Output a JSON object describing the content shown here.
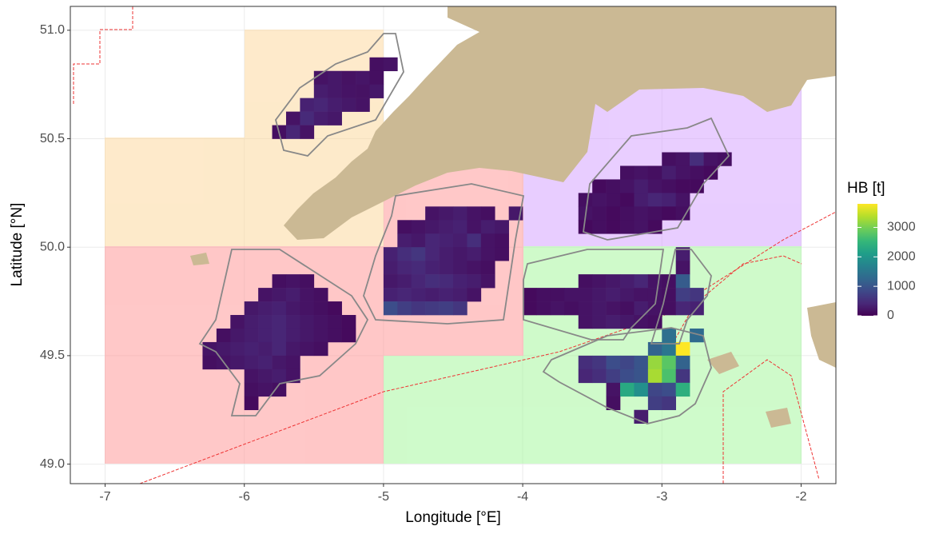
{
  "chart_data": {
    "type": "heatmap",
    "x_label": "Longitude  [°E]",
    "y_label": "Latitude  [°N]",
    "xlim": [
      -7.25,
      -1.75
    ],
    "ylim": [
      48.91,
      51.11
    ],
    "xticks": [
      -7,
      -6,
      -5,
      -4,
      -3,
      -2
    ],
    "yticks": [
      {
        "value": 49,
        "label": "49.0"
      },
      {
        "value": 49.5,
        "label": "49.5"
      },
      {
        "value": 50,
        "label": "50.0"
      },
      {
        "value": 50.5,
        "label": "50.5"
      },
      {
        "value": 51,
        "label": "51.0"
      }
    ],
    "grid": true,
    "rows": [
      {
        "lat": 50.8125,
        "lon": -5.1,
        "values": [
          150,
          200
        ]
      },
      {
        "lat": 50.75,
        "lon": -5.5,
        "values": [
          200,
          250,
          180,
          220,
          150
        ]
      },
      {
        "lat": 50.6875,
        "lon": -5.5,
        "values": [
          300,
          250,
          200,
          180,
          250
        ]
      },
      {
        "lat": 50.625,
        "lon": -5.6,
        "values": [
          350,
          400,
          300,
          250,
          200
        ]
      },
      {
        "lat": 50.5625,
        "lon": -5.7,
        "values": [
          200,
          450,
          300,
          250
        ]
      },
      {
        "lat": 50.5,
        "lon": -5.8,
        "values": [
          150,
          400,
          200
        ]
      },
      {
        "lat": 50.375,
        "lon": -3.0,
        "values": [
          150,
          200,
          500,
          200,
          150
        ]
      },
      {
        "lat": 50.3125,
        "lon": -3.3,
        "values": [
          150,
          200,
          150,
          300,
          200,
          150,
          100
        ]
      },
      {
        "lat": 50.25,
        "lon": -3.5,
        "values": [
          100,
          150,
          200,
          300,
          200,
          150,
          100,
          100
        ]
      },
      {
        "lat": 50.1875,
        "lon": -3.6,
        "values": [
          150,
          200,
          150,
          100,
          300,
          400,
          350,
          200
        ]
      },
      {
        "lat": 50.125,
        "lon": -3.6,
        "values": [
          200,
          150,
          100,
          150,
          200,
          150,
          100,
          150
        ]
      },
      {
        "lat": 50.0625,
        "lon": -3.6,
        "values": [
          100,
          150,
          100,
          150,
          200,
          100
        ]
      },
      {
        "lat": 50.125,
        "lon": -4.7,
        "values": [
          200,
          250,
          300,
          200,
          150,
          null,
          250
        ]
      },
      {
        "lat": 50.0625,
        "lon": -4.9,
        "values": [
          150,
          200,
          250,
          300,
          350,
          200,
          300,
          250
        ]
      },
      {
        "lat": 50.0,
        "lon": -4.9,
        "values": [
          300,
          250,
          400,
          350,
          300,
          500,
          200,
          150
        ]
      },
      {
        "lat": 49.9375,
        "lon": -5.0,
        "values": [
          350,
          500,
          600,
          400,
          300,
          250,
          300,
          200,
          150
        ]
      },
      {
        "lat": 49.875,
        "lon": -5.0,
        "values": [
          300,
          400,
          450,
          350,
          300,
          250,
          200,
          150
        ]
      },
      {
        "lat": 49.8125,
        "lon": -5.0,
        "values": [
          250,
          300,
          400,
          500,
          450,
          350,
          300,
          200
        ]
      },
      {
        "lat": 49.75,
        "lon": -5.0,
        "values": [
          350,
          400,
          350,
          300,
          350,
          300,
          200
        ]
      },
      {
        "lat": 49.6875,
        "lon": -5.0,
        "values": [
          900,
          700,
          600,
          650,
          700,
          600
        ]
      },
      {
        "lat": 49.8125,
        "lon": -5.8,
        "values": [
          150,
          200,
          150
        ]
      },
      {
        "lat": 49.75,
        "lon": -5.9,
        "values": [
          200,
          250,
          300,
          200,
          150
        ]
      },
      {
        "lat": 49.6875,
        "lon": -6.0,
        "values": [
          250,
          300,
          350,
          250,
          200,
          150,
          100
        ]
      },
      {
        "lat": 49.625,
        "lon": -6.1,
        "values": [
          200,
          300,
          350,
          400,
          300,
          250,
          200,
          150,
          100
        ]
      },
      {
        "lat": 49.5625,
        "lon": -6.2,
        "values": [
          150,
          250,
          300,
          350,
          400,
          300,
          250,
          200,
          150,
          100
        ]
      },
      {
        "lat": 49.5,
        "lon": -6.3,
        "values": [
          200,
          250,
          300,
          350,
          300,
          400,
          250,
          200,
          150
        ]
      },
      {
        "lat": 49.4375,
        "lon": -6.3,
        "values": [
          150,
          200,
          250,
          300,
          350,
          250,
          200
        ]
      },
      {
        "lat": 49.375,
        "lon": -6.0,
        "values": [
          200,
          250,
          300,
          200
        ]
      },
      {
        "lat": 49.3125,
        "lon": -6.0,
        "values": [
          150,
          200,
          150
        ]
      },
      {
        "lat": 49.25,
        "lon": -6.0,
        "values": [
          100
        ]
      },
      {
        "lat": 49.9375,
        "lon": -2.9,
        "values": [
          300
        ]
      },
      {
        "lat": 49.875,
        "lon": -2.9,
        "values": [
          200
        ]
      },
      {
        "lat": 49.8125,
        "lon": -3.6,
        "values": [
          150,
          200,
          250,
          300,
          400,
          200,
          150,
          1100
        ]
      },
      {
        "lat": 49.75,
        "lon": -4.0,
        "values": [
          100,
          150,
          150,
          200,
          200,
          250,
          300,
          250,
          200,
          200,
          150,
          700,
          600
        ]
      },
      {
        "lat": 49.6875,
        "lon": -4.0,
        "values": [
          100,
          150,
          200,
          150,
          200,
          250,
          200,
          150,
          300,
          200,
          150,
          400,
          350
        ]
      },
      {
        "lat": 49.625,
        "lon": -3.6,
        "values": [
          200,
          250,
          300,
          250,
          200,
          150
        ]
      },
      {
        "lat": 49.5625,
        "lon": -3.0,
        "values": [
          1400,
          null,
          1300
        ]
      },
      {
        "lat": 49.5,
        "lon": -3.1,
        "values": [
          1200,
          1500,
          3800
        ]
      },
      {
        "lat": 49.4375,
        "lon": -3.6,
        "values": [
          500,
          600,
          900,
          800,
          1000,
          3200,
          2800,
          1200
        ]
      },
      {
        "lat": 49.375,
        "lon": -3.6,
        "values": [
          400,
          500,
          700,
          900,
          1000,
          3300,
          2700,
          600
        ]
      },
      {
        "lat": 49.3125,
        "lon": -3.4,
        "values": [
          200,
          2300,
          1900,
          800,
          900,
          2400
        ]
      },
      {
        "lat": 49.25,
        "lon": -3.4,
        "values": [
          150,
          null,
          null,
          700,
          600
        ]
      },
      {
        "lat": 49.1875,
        "lon": -3.2,
        "values": [
          300
        ]
      }
    ],
    "legend": {
      "title": "HB [t]",
      "range": [
        0,
        3800
      ],
      "ticks": [
        0,
        1000,
        2000,
        3000
      ],
      "colormap": "viridis"
    }
  }
}
